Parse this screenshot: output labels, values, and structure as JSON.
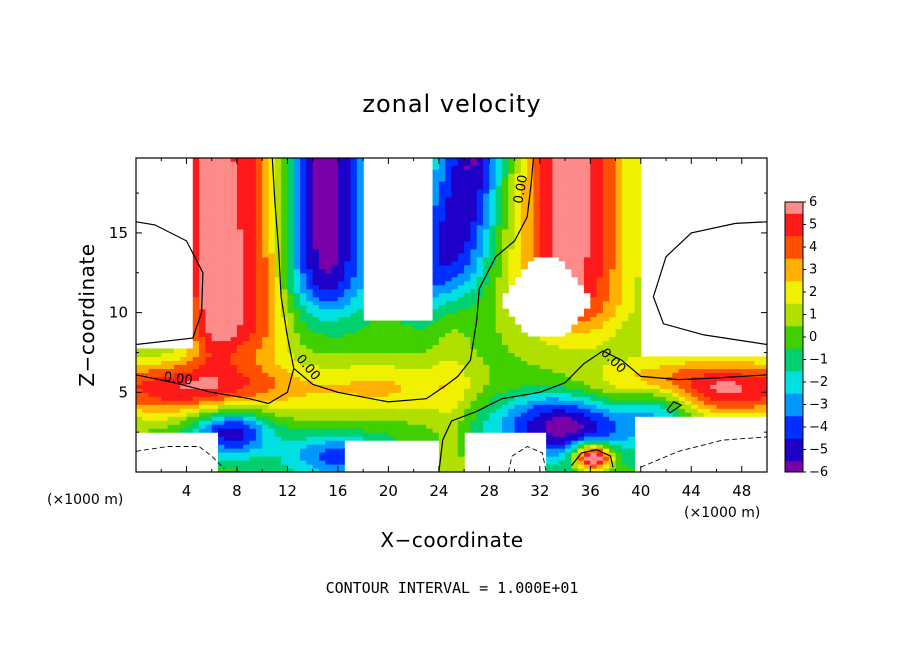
{
  "chart_data": {
    "type": "heatmap",
    "title": "zonal velocity",
    "xlabel": "X−coordinate",
    "ylabel": "Z−coordinate",
    "x_unit_left": "(×1000 m)",
    "x_unit_right": "(×1000 m)",
    "xlim": [
      0,
      50
    ],
    "ylim": [
      0,
      19.7
    ],
    "x_ticks": [
      4,
      8,
      12,
      16,
      20,
      24,
      28,
      32,
      36,
      40,
      44,
      48
    ],
    "x_tick_labels": [
      "4",
      "8",
      "12",
      "16",
      "20",
      "24",
      "28",
      "32",
      "36",
      "40",
      "44",
      "48"
    ],
    "y_ticks": [
      5,
      10,
      15
    ],
    "y_tick_labels": [
      "5",
      "10",
      "15"
    ],
    "colorbar": {
      "min": -6,
      "max": 6,
      "tick_values": [
        6,
        5,
        4,
        3,
        2,
        1,
        0,
        -1,
        -2,
        -3,
        -4,
        -5,
        -6
      ],
      "tick_labels": [
        "6",
        "5",
        "4",
        "3",
        "2",
        "1",
        "0",
        "−1",
        "−2",
        "−3",
        "−4",
        "−5",
        "−6"
      ]
    },
    "contour_labels": [
      {
        "text": "0.00",
        "x": 3.3,
        "z": 5.6,
        "angle": 8
      },
      {
        "text": "0.00",
        "x": 13.4,
        "z": 6.4,
        "angle": 50
      },
      {
        "text": "0.00",
        "x": 30.8,
        "z": 17.7,
        "angle": -80
      },
      {
        "text": "0.00",
        "x": 37.6,
        "z": 6.8,
        "angle": 45
      }
    ],
    "contour_interval_note": "CONTOUR INTERVAL = 1.000E+01",
    "grid": false,
    "legend": "right colorbar"
  }
}
